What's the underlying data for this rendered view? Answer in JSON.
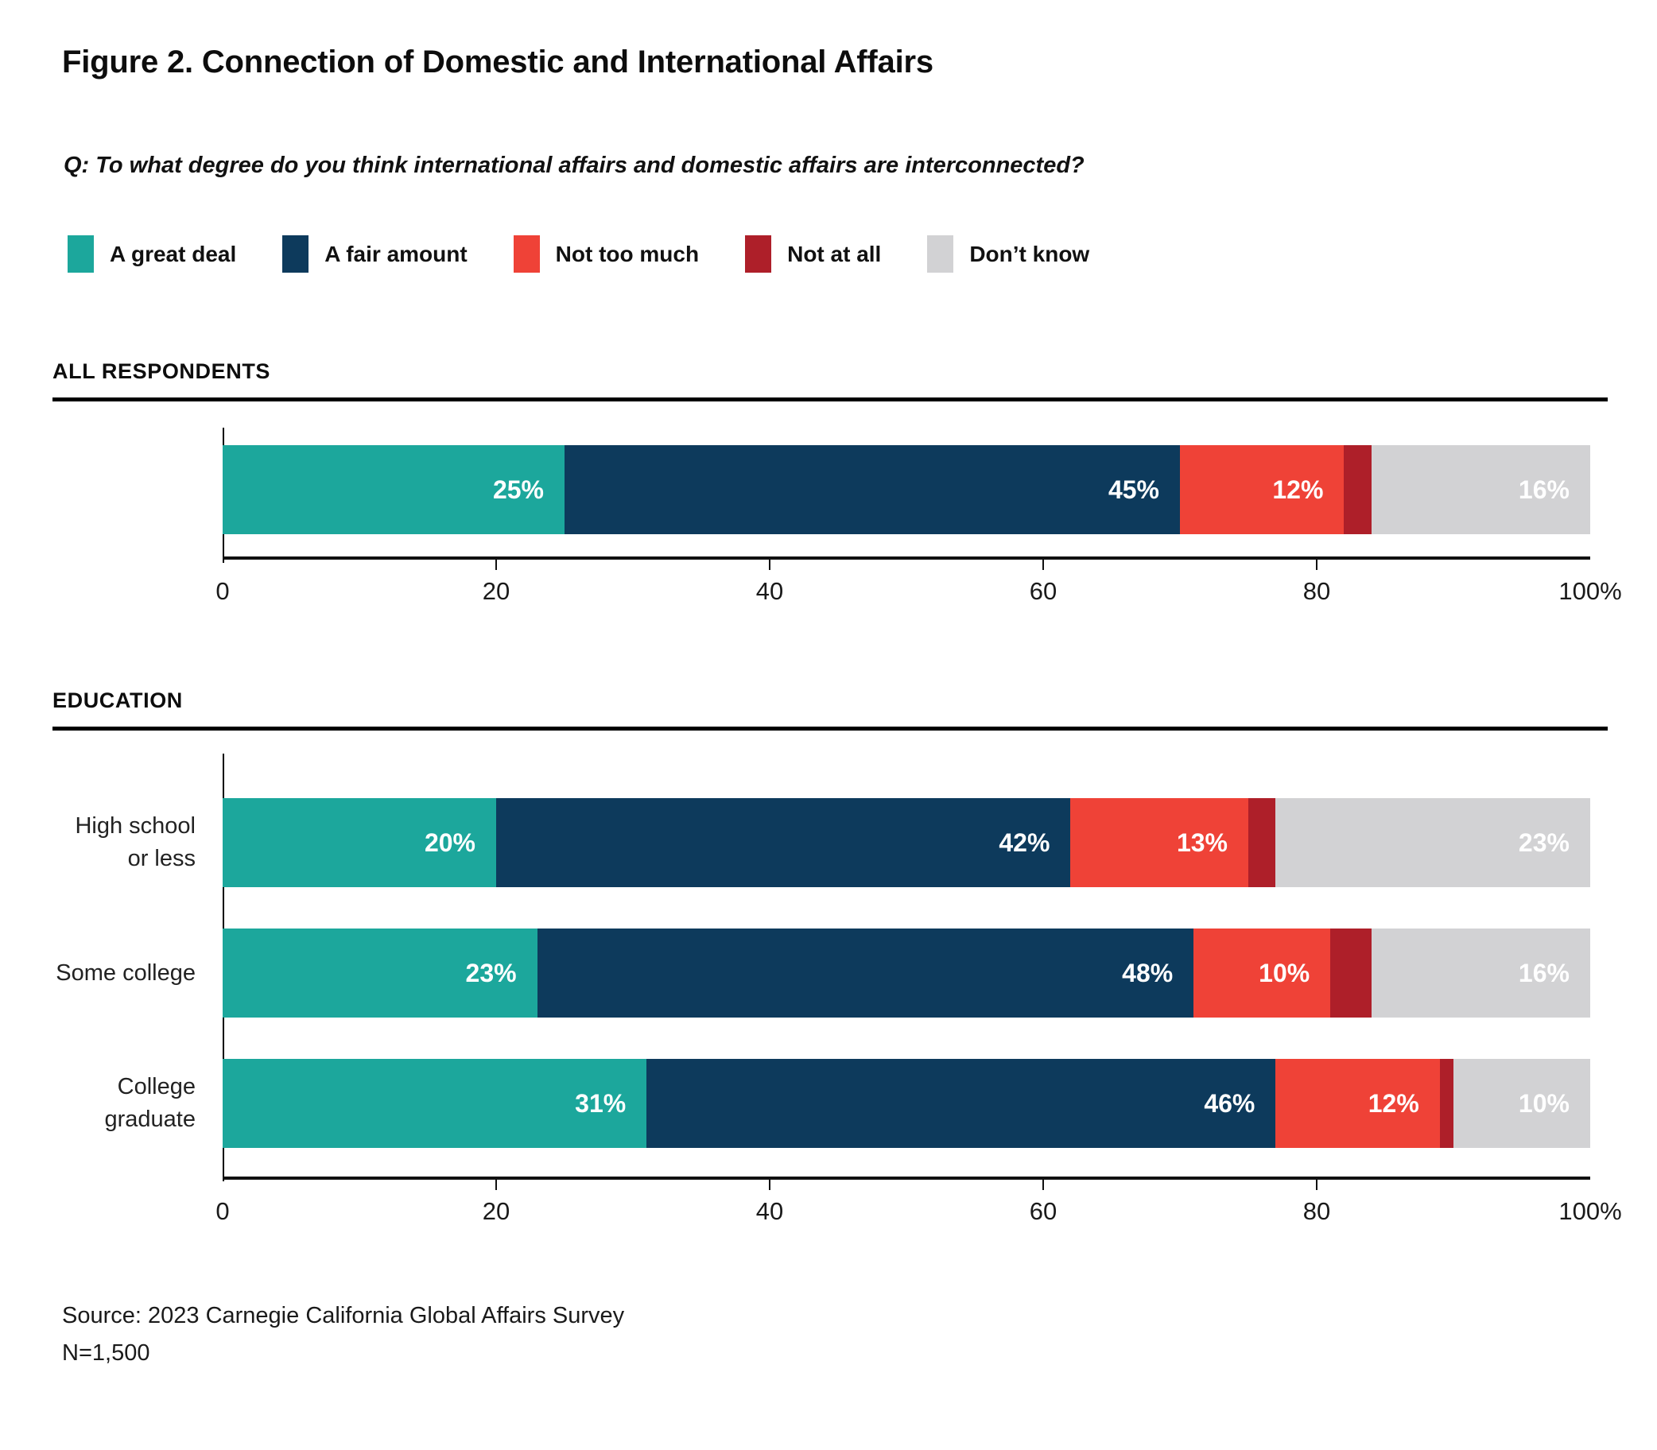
{
  "page": {
    "title": "Figure 2. Connection of Domestic and International Affairs",
    "question": "Q: To what degree do you think international affairs and domestic affairs are interconnected?",
    "source": "Source: 2023 Carnegie California Global Affairs Survey",
    "sample_size": "N=1,500"
  },
  "colors": {
    "a_great_deal": "#1CA79C",
    "a_fair_amount": "#0D3A5C",
    "not_too_much": "#EF4237",
    "not_at_all": "#AE1F29",
    "dont_know": "#D2D2D4",
    "axis": "#111111"
  },
  "legend": {
    "items": [
      {
        "label": "A great deal",
        "color": "#1CA79C"
      },
      {
        "label": "A fair amount",
        "color": "#0D3A5C"
      },
      {
        "label": "Not too much",
        "color": "#EF4237"
      },
      {
        "label": "Not at all",
        "color": "#AE1F29"
      },
      {
        "label": "Don’t know",
        "color": "#D2D2D4"
      }
    ]
  },
  "chart_data": {
    "type": "bar",
    "orientation": "horizontal",
    "stacked": true,
    "title": "Figure 2. Connection of Domestic and International Affairs",
    "subtitle": "Q: To what degree do you think international affairs and domestic affairs are interconnected?",
    "series": [
      "A great deal",
      "A fair amount",
      "Not too much",
      "Not at all",
      "Don’t know"
    ],
    "series_colors": [
      "#1CA79C",
      "#0D3A5C",
      "#EF4237",
      "#AE1F29",
      "#D2D2D4"
    ],
    "xlim": [
      0,
      100
    ],
    "x_ticks": [
      "0",
      "20",
      "40",
      "60",
      "80",
      "100%"
    ],
    "x_tick_values": [
      0,
      20,
      40,
      60,
      80,
      100
    ],
    "grid": false,
    "legend_position": "top",
    "sections": [
      {
        "heading": "ALL RESPONDENTS",
        "rows": [
          {
            "label": "All respondents",
            "label_lines": [],
            "values": [
              25,
              45,
              12,
              2,
              16
            ],
            "value_labels": [
              "25%",
              "45%",
              "12%",
              "",
              "16%"
            ]
          }
        ]
      },
      {
        "heading": "EDUCATION",
        "rows": [
          {
            "label": "High school or less",
            "label_lines": [
              "High school",
              "or less"
            ],
            "values": [
              20,
              42,
              13,
              2,
              23
            ],
            "value_labels": [
              "20%",
              "42%",
              "13%",
              "",
              "23%"
            ]
          },
          {
            "label": "Some college",
            "label_lines": [
              "Some college"
            ],
            "values": [
              23,
              48,
              10,
              3,
              16
            ],
            "value_labels": [
              "23%",
              "48%",
              "10%",
              "",
              "16%"
            ]
          },
          {
            "label": "College graduate",
            "label_lines": [
              "College",
              "graduate"
            ],
            "values": [
              31,
              46,
              12,
              1,
              10
            ],
            "value_labels": [
              "31%",
              "46%",
              "12%",
              "",
              "10%"
            ]
          }
        ]
      }
    ],
    "source": "Source: 2023 Carnegie California Global Affairs Survey",
    "n": "N=1,500"
  }
}
